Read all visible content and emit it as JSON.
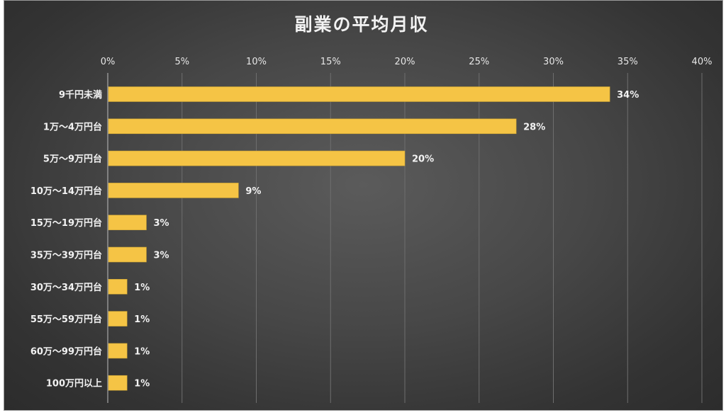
{
  "chart_data": {
    "type": "bar",
    "orientation": "horizontal",
    "title": "副業の平均月収",
    "xlabel": "",
    "ylabel": "",
    "xlim": [
      0,
      40
    ],
    "x_ticks": [
      "0%",
      "5%",
      "10%",
      "15%",
      "20%",
      "25%",
      "30%",
      "35%",
      "40%"
    ],
    "grid": true,
    "legend": "none",
    "bar_color": "#f5c445",
    "categories": [
      "9千円未満",
      "1万～4万円台",
      "5万～9万円台",
      "10万～14万円台",
      "15万～19万円台",
      "35万～39万円台",
      "30万～34万円台",
      "55万～59万円台",
      "60万～99万円台",
      "100万円以上"
    ],
    "values": [
      33.8,
      27.5,
      20,
      8.8,
      2.6,
      2.6,
      1.3,
      1.3,
      1.3,
      1.3
    ],
    "data_labels": [
      "34%",
      "28%",
      "20%",
      "9%",
      "3%",
      "3%",
      "1%",
      "1%",
      "1%",
      "1%"
    ]
  }
}
